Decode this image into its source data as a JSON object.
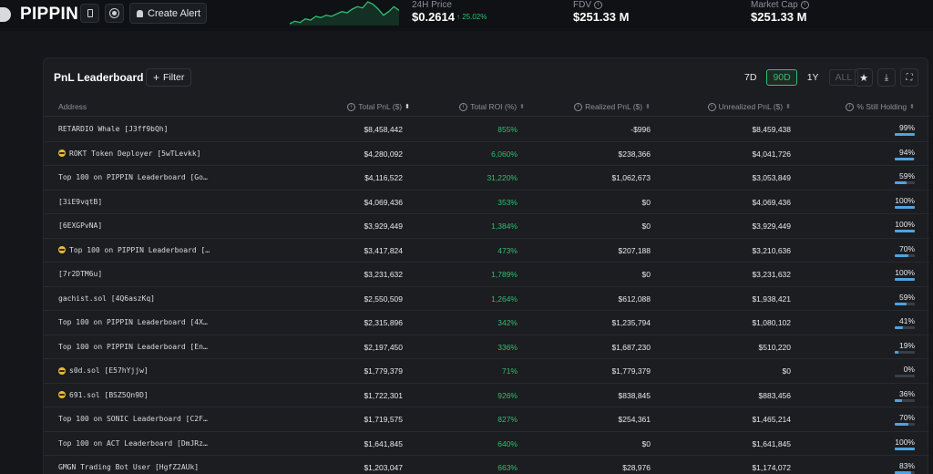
{
  "header": {
    "token": "PIPPIN",
    "create_alert": "Create Alert",
    "price_label": "24H Price",
    "price_value": "$0.2614",
    "price_change": "↑ 25.02%",
    "fdv_label": "FDV",
    "fdv_value": "$251.33 M",
    "mcap_label": "Market Cap",
    "mcap_value": "$251.33 M",
    "sparkline_points": [
      8,
      10,
      9,
      12,
      11,
      14,
      13,
      15,
      14,
      16,
      18,
      17,
      20,
      22,
      21,
      26,
      24,
      20,
      15,
      18,
      22,
      19
    ]
  },
  "panel": {
    "title": "PnL Leaderboard",
    "filter_label": "Filter",
    "ranges": [
      {
        "label": "7D",
        "state": "normal"
      },
      {
        "label": "90D",
        "state": "active"
      },
      {
        "label": "1Y",
        "state": "normal"
      },
      {
        "label": "ALL",
        "state": "disabled"
      }
    ]
  },
  "table": {
    "columns": {
      "address": "Address",
      "total_pnl": "Total PnL ($)",
      "total_roi": "Total ROI (%)",
      "realized": "Realized PnL ($)",
      "unrealized": "Unrealized PnL ($)",
      "holding": "% Still Holding"
    },
    "rows": [
      {
        "address": "RETARDIO Whale [J3ff9bQh]",
        "emoji": false,
        "total_pnl": "$8,458,442",
        "roi": "855%",
        "realized": "-$996",
        "unrealized": "$8,459,438",
        "holding": "99%",
        "holding_frac": 0.99
      },
      {
        "address": "ROKT Token Deployer [5wTLevkk]",
        "emoji": true,
        "total_pnl": "$4,280,092",
        "roi": "6,060%",
        "realized": "$238,366",
        "unrealized": "$4,041,726",
        "holding": "94%",
        "holding_frac": 0.94
      },
      {
        "address": "Top 100 on PIPPIN Leaderboard [Go…",
        "emoji": false,
        "total_pnl": "$4,116,522",
        "roi": "31,220%",
        "realized": "$1,062,673",
        "unrealized": "$3,053,849",
        "holding": "59%",
        "holding_frac": 0.59
      },
      {
        "address": "[3iE9vqtB]",
        "emoji": false,
        "total_pnl": "$4,069,436",
        "roi": "353%",
        "realized": "$0",
        "unrealized": "$4,069,436",
        "holding": "100%",
        "holding_frac": 1.0
      },
      {
        "address": "[6EXGPvNA]",
        "emoji": false,
        "total_pnl": "$3,929,449",
        "roi": "1,384%",
        "realized": "$0",
        "unrealized": "$3,929,449",
        "holding": "100%",
        "holding_frac": 1.0
      },
      {
        "address": "Top 100 on PIPPIN Leaderboard […",
        "emoji": true,
        "total_pnl": "$3,417,824",
        "roi": "473%",
        "realized": "$207,188",
        "unrealized": "$3,210,636",
        "holding": "70%",
        "holding_frac": 0.7
      },
      {
        "address": "[7r2DTM6u]",
        "emoji": false,
        "total_pnl": "$3,231,632",
        "roi": "1,789%",
        "realized": "$0",
        "unrealized": "$3,231,632",
        "holding": "100%",
        "holding_frac": 1.0
      },
      {
        "address": "gachist.sol [4Q6aszKq]",
        "emoji": false,
        "total_pnl": "$2,550,509",
        "roi": "1,264%",
        "realized": "$612,088",
        "unrealized": "$1,938,421",
        "holding": "59%",
        "holding_frac": 0.59
      },
      {
        "address": "Top 100 on PIPPIN Leaderboard [4X…",
        "emoji": false,
        "total_pnl": "$2,315,896",
        "roi": "342%",
        "realized": "$1,235,794",
        "unrealized": "$1,080,102",
        "holding": "41%",
        "holding_frac": 0.41
      },
      {
        "address": "Top 100 on PIPPIN Leaderboard [En…",
        "emoji": false,
        "total_pnl": "$2,197,450",
        "roi": "336%",
        "realized": "$1,687,230",
        "unrealized": "$510,220",
        "holding": "19%",
        "holding_frac": 0.19
      },
      {
        "address": "s0d.sol [E57hYjjw]",
        "emoji": true,
        "total_pnl": "$1,779,379",
        "roi": "71%",
        "realized": "$1,779,379",
        "unrealized": "$0",
        "holding": "0%",
        "holding_frac": 0.0
      },
      {
        "address": "691.sol [BSZ5Qn9D]",
        "emoji": true,
        "total_pnl": "$1,722,301",
        "roi": "926%",
        "realized": "$838,845",
        "unrealized": "$883,456",
        "holding": "36%",
        "holding_frac": 0.36
      },
      {
        "address": "Top 100 on SONIC Leaderboard [C2F…",
        "emoji": false,
        "total_pnl": "$1,719,575",
        "roi": "827%",
        "realized": "$254,361",
        "unrealized": "$1,465,214",
        "holding": "70%",
        "holding_frac": 0.7
      },
      {
        "address": "Top 100 on ACT Leaderboard [DmJRz…",
        "emoji": false,
        "total_pnl": "$1,641,845",
        "roi": "640%",
        "realized": "$0",
        "unrealized": "$1,641,845",
        "holding": "100%",
        "holding_frac": 1.0
      },
      {
        "address": "GMGN Trading Bot User [HgfZ2AUk]",
        "emoji": false,
        "total_pnl": "$1,203,047",
        "roi": "663%",
        "realized": "$28,976",
        "unrealized": "$1,174,072",
        "holding": "83%",
        "holding_frac": 0.83
      }
    ]
  }
}
